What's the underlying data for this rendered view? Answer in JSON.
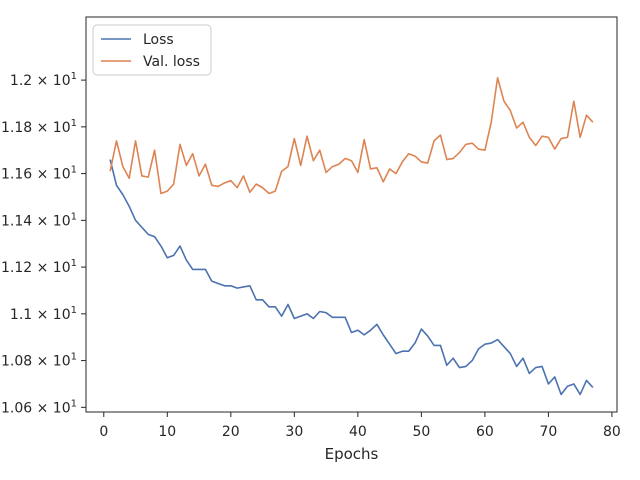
{
  "chart_data": {
    "type": "line",
    "title": "",
    "xlabel": "Epochs",
    "ylabel": "",
    "xlim": [
      -2.8,
      80.8
    ],
    "ylim": [
      10.58,
      12.27
    ],
    "xticks": [
      0,
      10,
      20,
      30,
      40,
      50,
      60,
      70,
      80
    ],
    "yticks": [
      {
        "value": 10.6,
        "mantissa": "1.06",
        "exp": "1"
      },
      {
        "value": 10.8,
        "mantissa": "1.08",
        "exp": "1"
      },
      {
        "value": 11.0,
        "mantissa": "1.1",
        "exp": "1"
      },
      {
        "value": 11.2,
        "mantissa": "1.12",
        "exp": "1"
      },
      {
        "value": 11.4,
        "mantissa": "1.14",
        "exp": "1"
      },
      {
        "value": 11.6,
        "mantissa": "1.16",
        "exp": "1"
      },
      {
        "value": 11.8,
        "mantissa": "1.18",
        "exp": "1"
      },
      {
        "value": 12.0,
        "mantissa": "1.2",
        "exp": "1"
      }
    ],
    "tick_base": "× 10",
    "legend_position": "upper-left",
    "x": [
      1,
      2,
      3,
      4,
      5,
      6,
      7,
      8,
      9,
      10,
      11,
      12,
      13,
      14,
      15,
      16,
      17,
      18,
      19,
      20,
      21,
      22,
      23,
      24,
      25,
      26,
      27,
      28,
      29,
      30,
      31,
      32,
      33,
      34,
      35,
      36,
      37,
      38,
      39,
      40,
      41,
      42,
      43,
      44,
      45,
      46,
      47,
      48,
      49,
      50,
      51,
      52,
      53,
      54,
      55,
      56,
      57,
      58,
      59,
      60,
      61,
      62,
      63,
      64,
      65,
      66,
      67,
      68,
      69,
      70,
      71,
      72,
      73,
      74,
      75,
      76,
      77
    ],
    "series": [
      {
        "name": "Loss",
        "color": "#4c72b0",
        "values": [
          11.66,
          11.55,
          11.51,
          11.46,
          11.4,
          11.37,
          11.34,
          11.33,
          11.29,
          11.24,
          11.25,
          11.29,
          11.23,
          11.19,
          11.19,
          11.19,
          11.14,
          11.13,
          11.12,
          11.12,
          11.11,
          11.115,
          11.12,
          11.06,
          11.06,
          11.03,
          11.03,
          10.99,
          11.04,
          10.98,
          10.99,
          11.0,
          10.98,
          11.01,
          11.005,
          10.985,
          10.985,
          10.985,
          10.92,
          10.93,
          10.91,
          10.93,
          10.955,
          10.91,
          10.87,
          10.83,
          10.84,
          10.84,
          10.875,
          10.935,
          10.905,
          10.865,
          10.865,
          10.78,
          10.81,
          10.77,
          10.775,
          10.8,
          10.85,
          10.87,
          10.875,
          10.89,
          10.86,
          10.83,
          10.775,
          10.81,
          10.745,
          10.77,
          10.775,
          10.7,
          10.73,
          10.655,
          10.69,
          10.7,
          10.655,
          10.715,
          10.685
        ]
      },
      {
        "name": "Val. loss",
        "color": "#dd8452",
        "values": [
          11.61,
          11.74,
          11.63,
          11.58,
          11.74,
          11.59,
          11.585,
          11.7,
          11.515,
          11.525,
          11.555,
          11.725,
          11.635,
          11.685,
          11.59,
          11.64,
          11.55,
          11.545,
          11.56,
          11.57,
          11.54,
          11.59,
          11.52,
          11.555,
          11.54,
          11.515,
          11.525,
          11.61,
          11.63,
          11.75,
          11.635,
          11.76,
          11.655,
          11.7,
          11.605,
          11.63,
          11.64,
          11.665,
          11.655,
          11.605,
          11.745,
          11.62,
          11.625,
          11.565,
          11.62,
          11.6,
          11.65,
          11.685,
          11.675,
          11.65,
          11.645,
          11.74,
          11.765,
          11.66,
          11.665,
          11.69,
          11.725,
          11.73,
          11.705,
          11.7,
          11.82,
          12.01,
          11.91,
          11.87,
          11.795,
          11.82,
          11.755,
          11.72,
          11.76,
          11.755,
          11.705,
          11.75,
          11.755,
          11.91,
          11.755,
          11.85,
          11.82
        ]
      }
    ]
  }
}
